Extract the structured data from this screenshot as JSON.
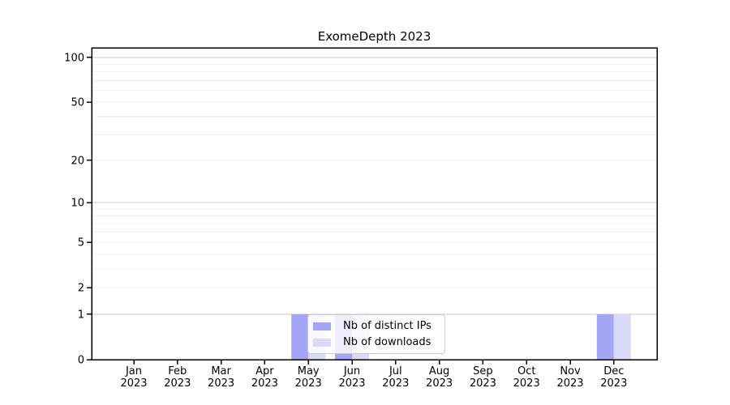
{
  "chart_data": {
    "type": "bar",
    "title": "ExomeDepth 2023",
    "categories": [
      "Jan 2023",
      "Feb 2023",
      "Mar 2023",
      "Apr 2023",
      "May 2023",
      "Jun 2023",
      "Jul 2023",
      "Aug 2023",
      "Sep 2023",
      "Oct 2023",
      "Nov 2023",
      "Dec 2023"
    ],
    "series": [
      {
        "name": "Nb of distinct IPs",
        "color": "#a5a5f6",
        "values": [
          0,
          0,
          0,
          0,
          1,
          1,
          0,
          0,
          0,
          0,
          0,
          1
        ]
      },
      {
        "name": "Nb of downloads",
        "color": "#d9d9f8",
        "values": [
          0,
          0,
          0,
          0,
          1,
          1,
          0,
          0,
          0,
          0,
          0,
          1
        ]
      }
    ],
    "xlabel": "",
    "ylabel": "",
    "yscale": "log1p",
    "ylim": [
      0,
      116
    ],
    "ytick_values": [
      0,
      1,
      2,
      5,
      10,
      20,
      50,
      100
    ],
    "major_gridlines": [
      1,
      10,
      100
    ],
    "minor_gridlines": [
      2,
      3,
      4,
      5,
      6,
      7,
      8,
      9,
      20,
      30,
      40,
      50,
      60,
      70,
      80,
      90
    ],
    "grid": "horizontal",
    "legend_position": "lower center inside plot"
  },
  "colors": {
    "axis": "#000000",
    "major_grid": "#c8c8c8",
    "minor_grid": "#eeeeee",
    "legend_border": "#cccccc",
    "background": "#ffffff",
    "tick_label": "#000000"
  }
}
